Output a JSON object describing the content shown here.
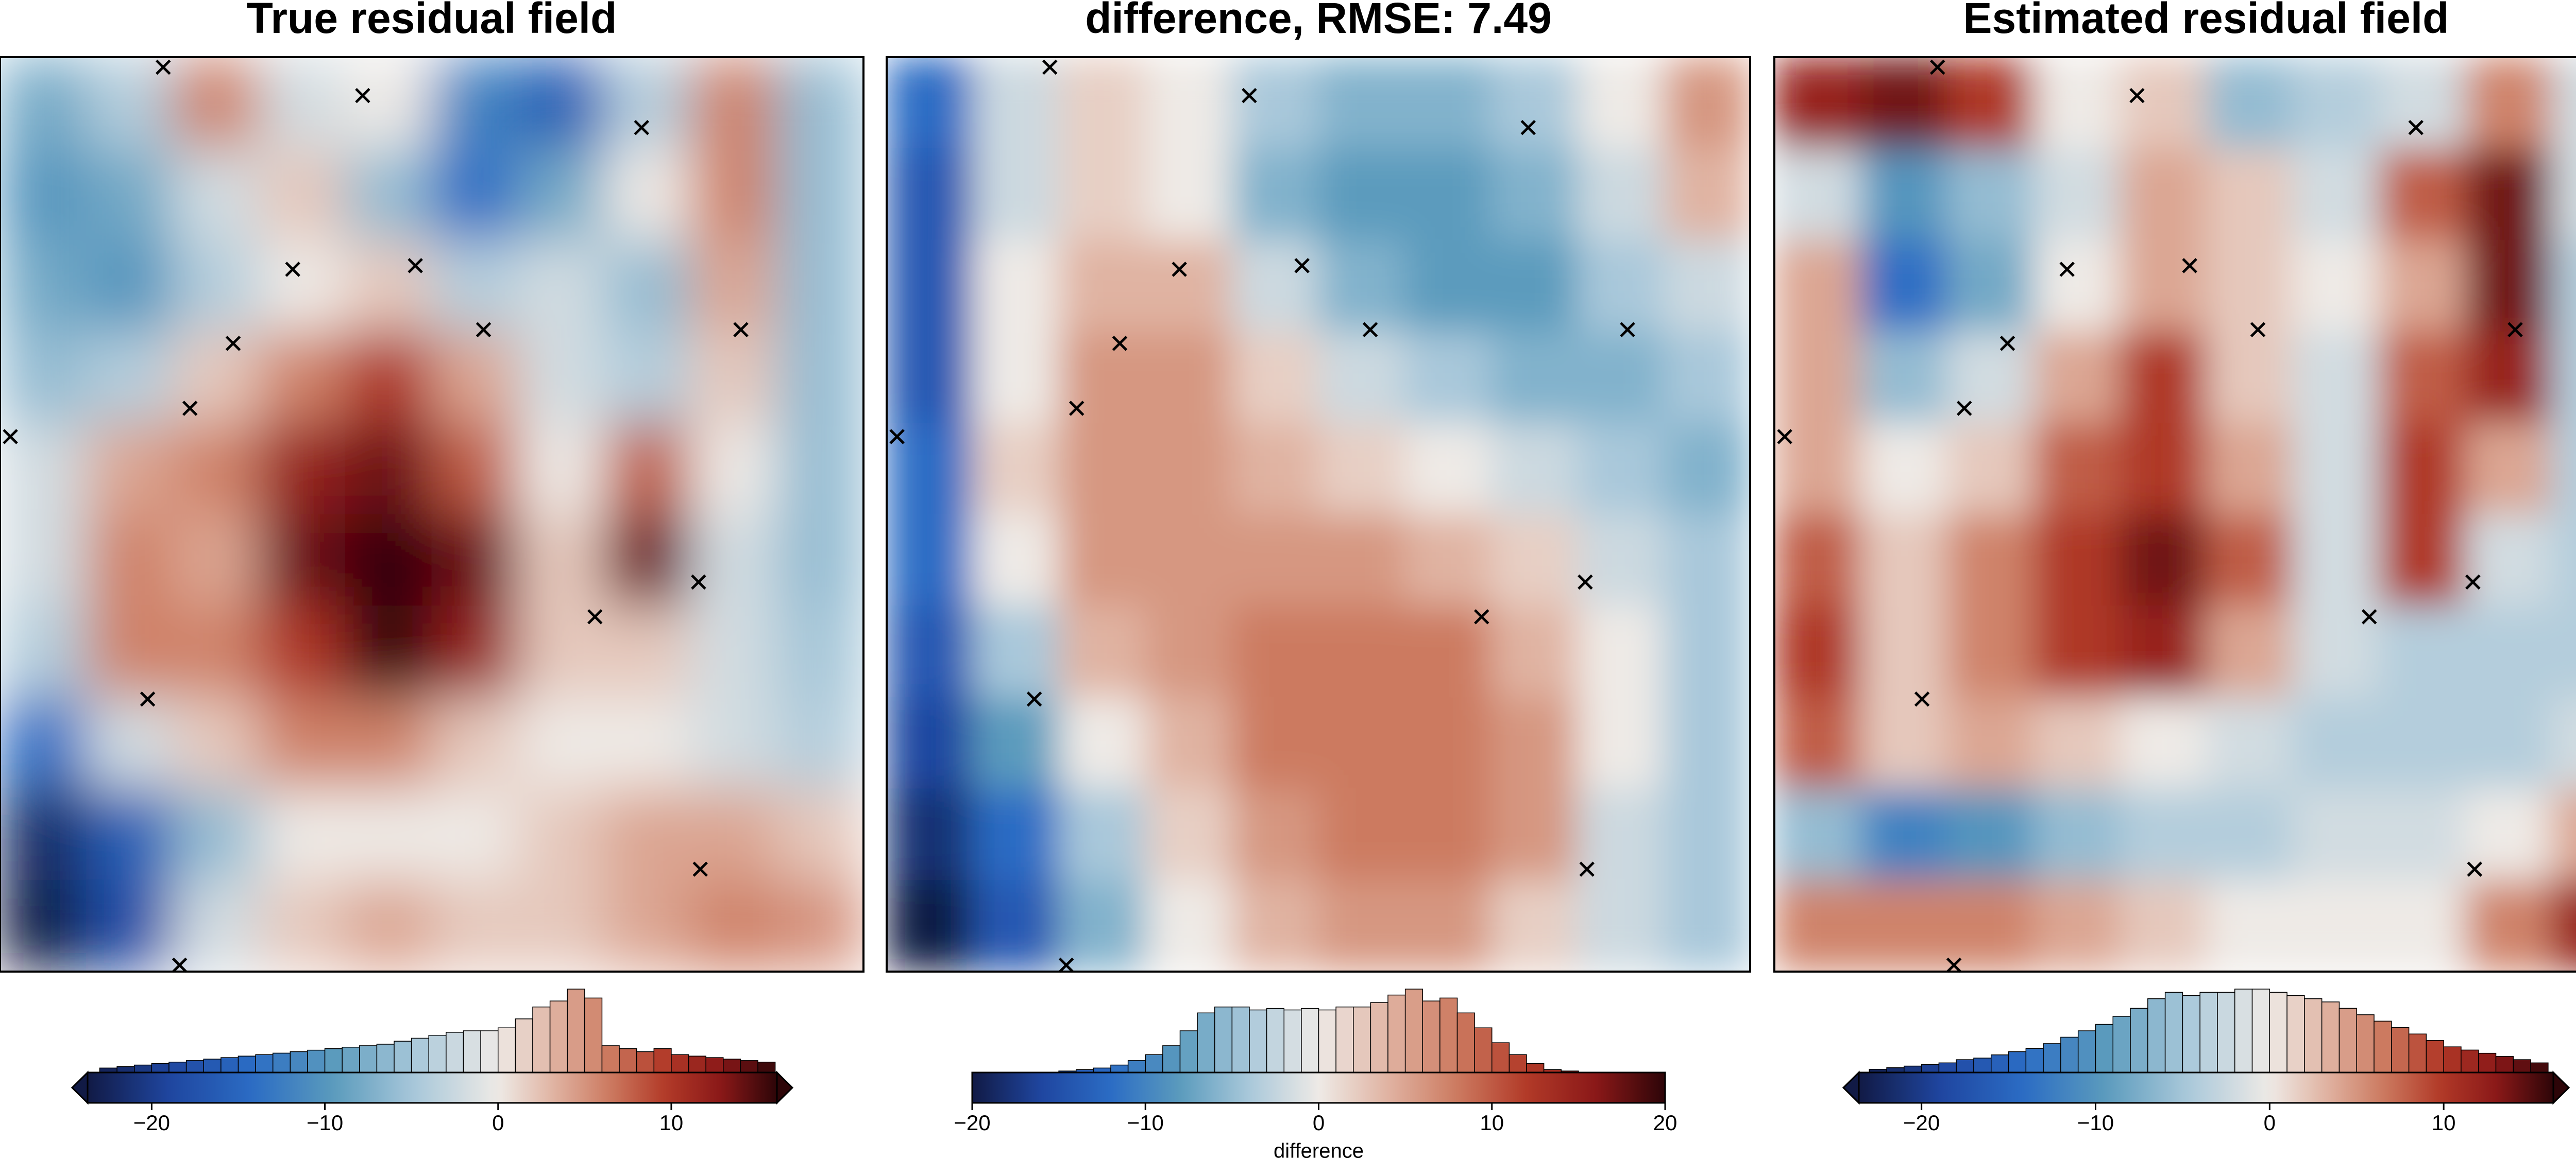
{
  "colormap": {
    "negative": [
      "#eeeae6",
      "#a9c8da",
      "#5b9bbd",
      "#2b6cc4",
      "#1f46a0",
      "#111a45"
    ],
    "positive": [
      "#eeeae6",
      "#e0b3a2",
      "#cc7a60",
      "#b23a28",
      "#8a1818",
      "#2d0508"
    ]
  },
  "chart_data": [
    {
      "type": "heatmap",
      "title": "True residual field",
      "xlim": [
        0,
        100
      ],
      "ylim": [
        0,
        100
      ],
      "values": [
        [
          -8,
          -4,
          6,
          -2,
          0,
          -12,
          -16,
          -4,
          6,
          -6
        ],
        [
          -10,
          -8,
          -2,
          2,
          -6,
          -14,
          -8,
          0,
          6,
          -6
        ],
        [
          -8,
          -10,
          -4,
          0,
          2,
          -4,
          -2,
          -6,
          4,
          -6
        ],
        [
          -6,
          -4,
          2,
          6,
          10,
          4,
          -2,
          -4,
          2,
          -6
        ],
        [
          -2,
          4,
          6,
          12,
          14,
          8,
          0,
          8,
          0,
          -6
        ],
        [
          -2,
          6,
          4,
          14,
          16,
          14,
          2,
          14,
          -2,
          -6
        ],
        [
          -4,
          6,
          6,
          10,
          16,
          12,
          2,
          2,
          -2,
          -5
        ],
        [
          -14,
          -2,
          2,
          6,
          6,
          2,
          0,
          0,
          -2,
          -4
        ],
        [
          -22,
          -16,
          -6,
          0,
          0,
          0,
          2,
          4,
          4,
          2
        ],
        [
          -24,
          -18,
          -2,
          2,
          4,
          2,
          2,
          4,
          6,
          5
        ]
      ],
      "markers": {
        "x": [
          18.9,
          42.0,
          74.3,
          33.9,
          48.1,
          56.0,
          85.8,
          27.0,
          22.0,
          1.2,
          80.9,
          68.9,
          17.1,
          81.1,
          20.8
        ],
        "y": [
          98.9,
          95.8,
          92.3,
          76.8,
          77.2,
          70.2,
          70.2,
          68.7,
          61.6,
          58.5,
          42.6,
          38.8,
          29.8,
          11.2,
          0.7
        ]
      },
      "colorbar": {
        "lim": [
          -23.7,
          16.1
        ],
        "extend": "both",
        "ticks": [
          {
            "value": -20,
            "label": "−20"
          },
          {
            "value": -10,
            "label": "−10"
          },
          0,
          10
        ],
        "hist": {
          "bins": [
            -23,
            -22,
            -21,
            -20,
            -19,
            -18,
            -17,
            -16,
            -15,
            -14,
            -13,
            -12,
            -11,
            -10,
            -9,
            -8,
            -7,
            -6,
            -5,
            -4,
            -3,
            -2,
            -1,
            0,
            1,
            2,
            3,
            4,
            5,
            6,
            7,
            8,
            9,
            10,
            11,
            12,
            13,
            14,
            15,
            16
          ],
          "counts": [
            3,
            4,
            5,
            6,
            7,
            8,
            9,
            10,
            11,
            12,
            13,
            14,
            15,
            16,
            17,
            18,
            19,
            21,
            23,
            25,
            27,
            28,
            28,
            30,
            36,
            44,
            48,
            56,
            50,
            18,
            16,
            14,
            16,
            12,
            11,
            10,
            9,
            8,
            7
          ]
        }
      }
    },
    {
      "type": "heatmap",
      "title": "difference, RMSE: 7.49",
      "xlim": [
        0,
        100
      ],
      "ylim": [
        0,
        100
      ],
      "values": [
        [
          -12,
          -2,
          2,
          0,
          -4,
          -6,
          -6,
          -4,
          0,
          6
        ],
        [
          -14,
          -2,
          2,
          0,
          -6,
          -8,
          -8,
          -6,
          -2,
          4
        ],
        [
          -14,
          0,
          4,
          4,
          -2,
          -6,
          -8,
          -8,
          -4,
          -2
        ],
        [
          -14,
          0,
          6,
          6,
          2,
          -2,
          -4,
          -6,
          -6,
          -4
        ],
        [
          -12,
          2,
          6,
          6,
          4,
          2,
          0,
          -2,
          -4,
          -6
        ],
        [
          -12,
          0,
          6,
          6,
          6,
          6,
          4,
          2,
          -2,
          -4
        ],
        [
          -14,
          -4,
          4,
          6,
          8,
          8,
          8,
          4,
          0,
          -4
        ],
        [
          -16,
          -8,
          0,
          4,
          8,
          8,
          8,
          6,
          0,
          -4
        ],
        [
          -18,
          -12,
          -4,
          2,
          6,
          8,
          8,
          6,
          -2,
          -4
        ],
        [
          -20,
          -14,
          -6,
          0,
          4,
          6,
          6,
          2,
          -2,
          -4
        ]
      ],
      "markers": {
        "x": [
          18.9,
          42.0,
          74.3,
          33.9,
          48.1,
          56.0,
          85.8,
          27.0,
          22.0,
          1.2,
          80.9,
          68.9,
          17.1,
          81.1,
          20.8
        ],
        "y": [
          98.9,
          95.8,
          92.3,
          76.8,
          77.2,
          70.2,
          70.2,
          68.7,
          61.6,
          58.5,
          42.6,
          38.8,
          29.8,
          11.2,
          0.7
        ]
      },
      "colorbar": {
        "lim": [
          -20,
          20
        ],
        "extend": "neither",
        "label": "difference",
        "ticks": [
          {
            "value": -20,
            "label": "−20"
          },
          {
            "value": -10,
            "label": "−10"
          },
          0,
          10,
          20
        ],
        "hist": {
          "bins": [
            -20,
            -19,
            -18,
            -17,
            -16,
            -15,
            -14,
            -13,
            -12,
            -11,
            -10,
            -9,
            -8,
            -7,
            -6,
            -5,
            -4,
            -3,
            -2,
            -1,
            0,
            1,
            2,
            3,
            4,
            5,
            6,
            7,
            8,
            9,
            10,
            11,
            12,
            13,
            14,
            15,
            16,
            17,
            18,
            19,
            20
          ],
          "counts": [
            0,
            0,
            0,
            0,
            0,
            1,
            2,
            3,
            5,
            8,
            12,
            18,
            28,
            40,
            44,
            44,
            42,
            43,
            42,
            43,
            42,
            44,
            44,
            47,
            52,
            56,
            48,
            50,
            40,
            30,
            20,
            12,
            6,
            2,
            1,
            0,
            0,
            0,
            0,
            0
          ]
        }
      }
    },
    {
      "type": "heatmap",
      "title": "Estimated residual field",
      "xlim": [
        0,
        100
      ],
      "ylim": [
        0,
        100
      ],
      "values": [
        [
          12,
          14,
          10,
          0,
          2,
          -6,
          -4,
          -2,
          6,
          -2
        ],
        [
          -2,
          -10,
          -6,
          -2,
          4,
          2,
          -2,
          8,
          14,
          -2
        ],
        [
          4,
          -14,
          -8,
          0,
          4,
          2,
          0,
          4,
          14,
          -4
        ],
        [
          4,
          -6,
          -2,
          4,
          10,
          2,
          -2,
          8,
          12,
          -4
        ],
        [
          4,
          0,
          2,
          8,
          10,
          4,
          -2,
          10,
          4,
          -4
        ],
        [
          8,
          2,
          6,
          10,
          14,
          8,
          -2,
          10,
          -2,
          -4
        ],
        [
          10,
          2,
          6,
          10,
          12,
          4,
          -2,
          -4,
          -4,
          -4
        ],
        [
          8,
          2,
          4,
          2,
          0,
          -2,
          -4,
          -4,
          -4,
          -2
        ],
        [
          -6,
          -12,
          -10,
          -6,
          -4,
          -4,
          -2,
          -2,
          0,
          4
        ],
        [
          6,
          6,
          6,
          4,
          2,
          0,
          0,
          0,
          6,
          12
        ]
      ],
      "markers": {
        "x": [
          18.9,
          42.0,
          74.3,
          33.9,
          48.1,
          56.0,
          85.8,
          27.0,
          22.0,
          1.2,
          80.9,
          68.9,
          17.1,
          81.1,
          20.8
        ],
        "y": [
          98.9,
          95.8,
          92.3,
          76.8,
          77.2,
          70.2,
          70.2,
          68.7,
          61.6,
          58.5,
          42.6,
          38.8,
          29.8,
          11.2,
          0.7
        ]
      },
      "colorbar": {
        "lim": [
          -23.6,
          16.3
        ],
        "extend": "both",
        "ticks": [
          {
            "value": -20,
            "label": "−20"
          },
          {
            "value": -10,
            "label": "−10"
          },
          0,
          10
        ],
        "hist": {
          "bins": [
            -23,
            -22,
            -21,
            -20,
            -19,
            -18,
            -17,
            -16,
            -15,
            -14,
            -13,
            -12,
            -11,
            -10,
            -9,
            -8,
            -7,
            -6,
            -5,
            -4,
            -3,
            -2,
            -1,
            0,
            1,
            2,
            3,
            4,
            5,
            6,
            7,
            8,
            9,
            10,
            11,
            12,
            13,
            14,
            15,
            16
          ],
          "counts": [
            2,
            3,
            4,
            5,
            6,
            8,
            9,
            11,
            13,
            15,
            18,
            22,
            26,
            30,
            35,
            40,
            46,
            50,
            48,
            50,
            50,
            52,
            52,
            50,
            48,
            46,
            44,
            40,
            36,
            32,
            28,
            24,
            20,
            16,
            14,
            12,
            10,
            8,
            6
          ]
        }
      }
    }
  ]
}
